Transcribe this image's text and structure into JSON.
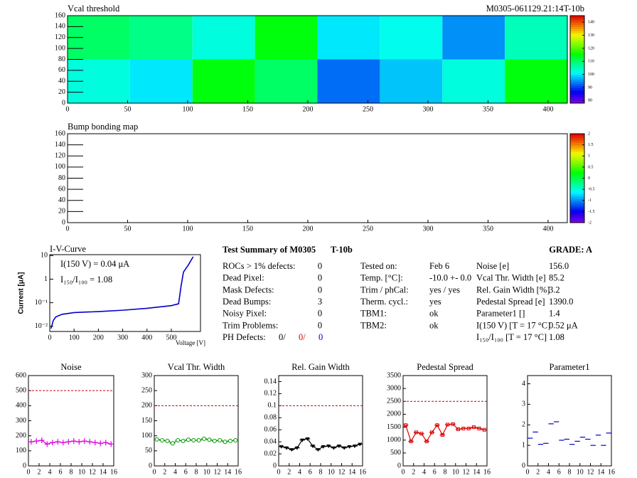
{
  "chart_data": [
    {
      "type": "heatmap",
      "title": "Vcal threshold",
      "subtitle": "M0305-061129.21:14T-10b",
      "xlim": [
        0,
        416
      ],
      "ylim": [
        0,
        160
      ],
      "xticks": [
        0,
        50,
        100,
        150,
        200,
        250,
        300,
        350,
        400
      ],
      "yticks": [
        0,
        20,
        40,
        60,
        80,
        100,
        120,
        140,
        160
      ],
      "xbins": [
        0,
        52,
        104,
        156,
        208,
        260,
        312,
        364,
        416
      ],
      "ybins": [
        0,
        80,
        160
      ],
      "values": [
        [
          103,
          100,
          115,
          110,
          93,
          98,
          103,
          115
        ],
        [
          110,
          108,
          103,
          115,
          100,
          102,
          95,
          105
        ]
      ],
      "zlim": [
        78,
        145
      ],
      "zticks": [
        80,
        90,
        100,
        110,
        120,
        130,
        140
      ]
    },
    {
      "type": "heatmap",
      "title": "Bump bonding map",
      "xlim": [
        0,
        416
      ],
      "ylim": [
        0,
        160
      ],
      "xticks": [
        0,
        50,
        100,
        150,
        200,
        250,
        300,
        350,
        400
      ],
      "yticks": [
        0,
        20,
        40,
        60,
        80,
        100,
        120,
        140,
        160
      ],
      "zlim": [
        -2,
        2
      ],
      "zticks": [
        -2,
        -1.5,
        -1,
        -0.5,
        0,
        0.5,
        1,
        1.5,
        2
      ]
    },
    {
      "type": "line",
      "title": "I-V-Curve",
      "xlabel": "Voltage [V]",
      "ylabel": "Current [μA]",
      "color": "#0000cc",
      "log_y": true,
      "xlim": [
        0,
        620
      ],
      "ylim": [
        0.006,
        11
      ],
      "xticks": [
        0,
        100,
        200,
        300,
        400,
        500
      ],
      "yticks": [
        {
          "value": 0.01,
          "label": "10⁻²"
        },
        {
          "value": 0.1,
          "label": "10⁻¹"
        },
        {
          "value": 1,
          "label": "1"
        },
        {
          "value": 10,
          "label": "10"
        }
      ],
      "x": [
        5,
        15,
        25,
        50,
        100,
        150,
        200,
        300,
        400,
        500,
        530,
        540,
        550,
        570,
        590
      ],
      "values": [
        0.008,
        0.018,
        0.025,
        0.032,
        0.038,
        0.04,
        0.042,
        0.048,
        0.058,
        0.075,
        0.09,
        0.5,
        2,
        4,
        9
      ],
      "annotations": [
        "I(150 V) = 0.04 μA",
        "I₁₅₀/I₁₀₀ =  1.08"
      ]
    },
    {
      "type": "histogram",
      "title": "Noise",
      "color": "#dd00dd",
      "marker": "plus",
      "line": true,
      "reference": 500,
      "bins": [
        0,
        1,
        2,
        3,
        4,
        5,
        6,
        7,
        8,
        9,
        10,
        11,
        12,
        13,
        14,
        15,
        16
      ],
      "xlim": [
        0,
        16
      ],
      "xticks": [
        0,
        2,
        4,
        6,
        8,
        10,
        12,
        14,
        16
      ],
      "ylim": [
        0,
        600
      ],
      "yticks": [
        0,
        100,
        200,
        300,
        400,
        500,
        600
      ],
      "values": [
        160,
        165,
        170,
        145,
        155,
        160,
        155,
        160,
        165,
        160,
        165,
        160,
        155,
        150,
        155,
        145
      ]
    },
    {
      "type": "histogram",
      "title": "Vcal Thr. Width",
      "color": "#009900",
      "marker": "circle",
      "line": true,
      "reference": 200,
      "bins": [
        0,
        1,
        2,
        3,
        4,
        5,
        6,
        7,
        8,
        9,
        10,
        11,
        12,
        13,
        14,
        15,
        16
      ],
      "xlim": [
        0,
        16
      ],
      "xticks": [
        0,
        2,
        4,
        6,
        8,
        10,
        12,
        14,
        16
      ],
      "ylim": [
        0,
        300
      ],
      "yticks": [
        0,
        50,
        100,
        150,
        200,
        250,
        300
      ],
      "values": [
        88,
        85,
        83,
        75,
        85,
        83,
        87,
        85,
        85,
        90,
        87,
        83,
        85,
        80,
        83,
        85
      ]
    },
    {
      "type": "histogram",
      "title": "Rel. Gain Width",
      "color": "#000000",
      "marker": "triangle",
      "line": true,
      "reference": 0.1,
      "bins": [
        0,
        1,
        2,
        3,
        4,
        5,
        6,
        7,
        8,
        9,
        10,
        11,
        12,
        13,
        14,
        15,
        16
      ],
      "xlim": [
        0,
        16
      ],
      "xticks": [
        0,
        2,
        4,
        6,
        8,
        10,
        12,
        14,
        16
      ],
      "ylim": [
        0,
        0.15
      ],
      "yticks": [
        0,
        0.02,
        0.04,
        0.06,
        0.08,
        0.1,
        0.12,
        0.14
      ],
      "values": [
        0.032,
        0.03,
        0.027,
        0.03,
        0.043,
        0.045,
        0.033,
        0.027,
        0.032,
        0.033,
        0.03,
        0.033,
        0.03,
        0.032,
        0.033,
        0.036
      ]
    },
    {
      "type": "histogram",
      "title": "Pedestal Spread",
      "color": "#dd0000",
      "marker": "square",
      "line": true,
      "reference": 2500,
      "bins": [
        0,
        1,
        2,
        3,
        4,
        5,
        6,
        7,
        8,
        9,
        10,
        11,
        12,
        13,
        14,
        15,
        16
      ],
      "xlim": [
        0,
        16
      ],
      "xticks": [
        0,
        2,
        4,
        6,
        8,
        10,
        12,
        14,
        16
      ],
      "ylim": [
        0,
        3500
      ],
      "yticks": [
        0,
        500,
        1000,
        1500,
        2000,
        2500,
        3000,
        3500
      ],
      "values": [
        1580,
        950,
        1300,
        1250,
        950,
        1300,
        1580,
        1200,
        1600,
        1620,
        1420,
        1450,
        1450,
        1500,
        1450,
        1400
      ]
    },
    {
      "type": "histogram",
      "title": "Parameter1",
      "color": "#0000cc",
      "marker": "none",
      "line": false,
      "bins": [
        0,
        1,
        2,
        3,
        4,
        5,
        6,
        7,
        8,
        9,
        10,
        11,
        12,
        13,
        14,
        15,
        16
      ],
      "xlim": [
        0,
        16
      ],
      "xticks": [
        0,
        2,
        4,
        6,
        8,
        10,
        12,
        14,
        16
      ],
      "ylim": [
        0,
        4.4
      ],
      "yticks": [
        0,
        1,
        2,
        3,
        4
      ],
      "values": [
        1.35,
        1.65,
        1.05,
        1.1,
        2.05,
        2.15,
        1.25,
        1.3,
        1.05,
        1.2,
        1.4,
        1.3,
        1.0,
        1.5,
        1.0,
        1.6
      ]
    }
  ],
  "summary": {
    "title": "Test Summary of M0305",
    "module": "T-10b",
    "grade": "GRADE:  A",
    "defects": [
      {
        "label": "ROCs > 1% defects:",
        "value": "0"
      },
      {
        "label": "Dead Pixel:",
        "value": "0"
      },
      {
        "label": "Mask Defects:",
        "value": "0"
      },
      {
        "label": "Dead Bumps:",
        "value": "3"
      },
      {
        "label": "Noisy Pixel:",
        "value": "0"
      },
      {
        "label": "Trim Problems:",
        "value": "0"
      }
    ],
    "ph_defects": {
      "label": "PH Defects:",
      "values": [
        "0/",
        "0/",
        "0"
      ],
      "colors": [
        "#000000",
        "#dd0000",
        "#0000cc"
      ]
    },
    "conditions": [
      {
        "label": "Tested on:",
        "value": "Feb 6"
      },
      {
        "label": "Temp. [°C]:",
        "value": "-10.0 +- 0.0"
      },
      {
        "label": "Trim / phCal:",
        "value": "yes / yes"
      },
      {
        "label": "Therm. cycl.:",
        "value": "yes"
      },
      {
        "label": "TBM1:",
        "value": "ok"
      },
      {
        "label": "TBM2:",
        "value": "ok"
      }
    ],
    "results": [
      {
        "label": "Noise [e]",
        "value": "156.0"
      },
      {
        "label": "Vcal Thr. Width [e]",
        "value": "85.2"
      },
      {
        "label": "Rel. Gain Width [%]",
        "value": "3.2"
      },
      {
        "label": "Pedestal Spread [e]",
        "value": "1390.0"
      },
      {
        "label": "Parameter1 []",
        "value": "1.4"
      },
      {
        "label": "I(150 V) [T = 17 °C]",
        "value": "0.52 μA"
      },
      {
        "label": "I₁₅₀/I₁₀₀  [T = 17 °C]",
        "value": "1.08"
      }
    ]
  }
}
